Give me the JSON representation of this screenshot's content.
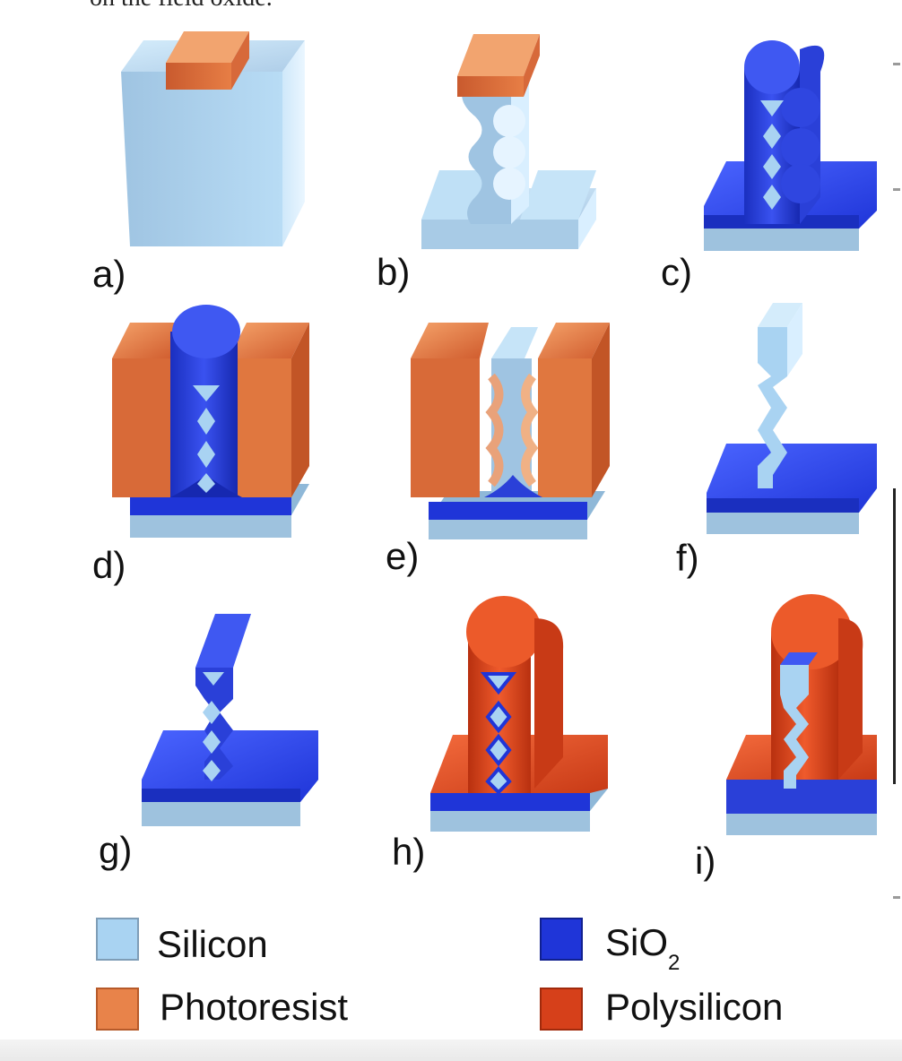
{
  "header": {
    "partial_text": "on the field oxide."
  },
  "panels": [
    {
      "id": "a",
      "label": "a)"
    },
    {
      "id": "b",
      "label": "b)"
    },
    {
      "id": "c",
      "label": "c)"
    },
    {
      "id": "d",
      "label": "d)"
    },
    {
      "id": "e",
      "label": "e)"
    },
    {
      "id": "f",
      "label": "f)"
    },
    {
      "id": "g",
      "label": "g)"
    },
    {
      "id": "h",
      "label": "h)"
    },
    {
      "id": "i",
      "label": "i)"
    }
  ],
  "legend": [
    {
      "label": "Silicon",
      "color": "#a9d3f2"
    },
    {
      "label": "Photoresist",
      "color": "#e8834a"
    },
    {
      "label": "SiO",
      "subscript": "2",
      "color": "#1f35d8"
    },
    {
      "label": "Polysilicon",
      "color": "#d6401a"
    }
  ],
  "colors": {
    "silicon": "#a9d3f2",
    "silicon_dark": "#7fa2bf",
    "photoresist": "#e8834a",
    "photoresist_dark": "#c4562a",
    "sio2": "#1f35d8",
    "sio2_dark": "#1424a0",
    "polysilicon": "#d6401a",
    "polysilicon_dark": "#a52a0c"
  }
}
